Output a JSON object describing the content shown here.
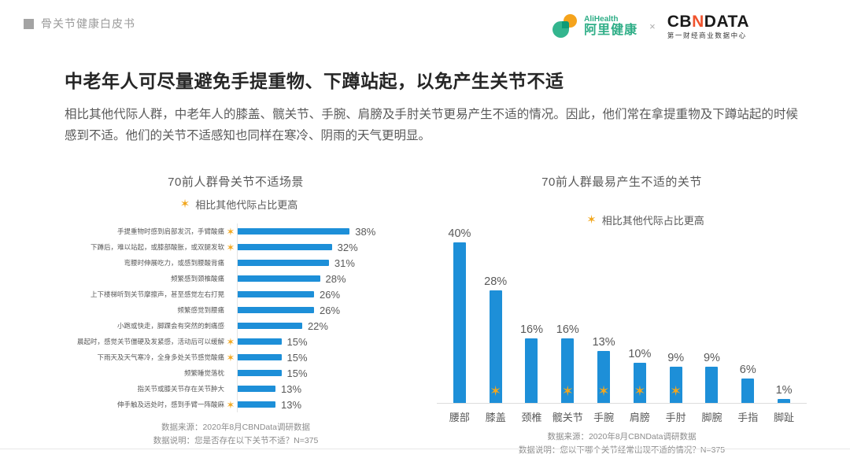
{
  "icons": {
    "star": "✶",
    "bullet": "■"
  },
  "colors": {
    "bar_blue": "#1D8FD8",
    "star_orange": "#F2A71E",
    "ali_green": "#2FAE87",
    "cbn_accent": "#F0532D"
  },
  "page": {
    "header": {
      "breadcrumb": "骨关节健康白皮书"
    },
    "logos": {
      "alihealth_en": "AliHealth",
      "alihealth_cn": "阿里健康",
      "separator": "×",
      "cbn_c": "CB",
      "cbn_n": "N",
      "cbn_data": "DATA",
      "cbn_sub": "第一财经商业数据中心"
    },
    "title": "中老年人可尽量避免手提重物、下蹲站起，以免产生关节不适",
    "body": "相比其他代际人群，中老年人的膝盖、髋关节、手腕、肩膀及手肘关节更易产生不适的情况。因此，他们常在拿提重物及下蹲站起的时候感到不适。他们的关节不适感知也同样在寒冷、阴雨的天气更明显。"
  },
  "chart_data": [
    {
      "type": "bar",
      "orientation": "horizontal",
      "title": "70前人群骨关节不适场景",
      "legend": "相比其他代际占比更高",
      "unit": "%",
      "xlim": [
        0,
        40
      ],
      "grid": false,
      "rows": [
        {
          "label": "手提重物时感到肩部发沉，手臂酸痛",
          "value": 38,
          "display": "38%",
          "star": true
        },
        {
          "label": "下蹲后，难以站起，或膝部酸胀，或双腿发软",
          "value": 32,
          "display": "32%",
          "star": true
        },
        {
          "label": "弯腰时伸展吃力，或感到腰酸背痛",
          "value": 31,
          "display": "31%",
          "star": false
        },
        {
          "label": "频繁感到颈椎酸痛",
          "value": 28,
          "display": "28%",
          "star": false
        },
        {
          "label": "上下楼梯听到关节摩擦声，甚至感觉左右打晃",
          "value": 26,
          "display": "26%",
          "star": false
        },
        {
          "label": "频繁感觉到腰痛",
          "value": 26,
          "display": "26%",
          "star": false
        },
        {
          "label": "小跑或快走，脚踝会有突然的刺痛感",
          "value": 22,
          "display": "22%",
          "star": false
        },
        {
          "label": "晨起时，感觉关节僵硬及发紧感，活动后可以缓解",
          "value": 15,
          "display": "15%",
          "star": true
        },
        {
          "label": "下雨天及天气寒冷，全身多处关节感觉酸痛",
          "value": 15,
          "display": "15%",
          "star": true
        },
        {
          "label": "频繁睡觉落枕",
          "value": 15,
          "display": "15%",
          "star": false
        },
        {
          "label": "指关节或膝关节存在关节肿大",
          "value": 13,
          "display": "13%",
          "star": false
        },
        {
          "label": "伸手触及远处时，感到手臂一阵酸麻",
          "value": 13,
          "display": "13%",
          "star": true
        }
      ],
      "source": "数据来源：2020年8月CBNData调研数据",
      "note": "数据说明：您是否存在以下关节不适？N=375"
    },
    {
      "type": "bar",
      "orientation": "vertical",
      "title": "70前人群最易产生不适的关节",
      "legend": "相比其他代际占比更高",
      "unit": "%",
      "ylim": [
        0,
        40
      ],
      "grid": false,
      "cols": [
        {
          "label": "腰部",
          "value": 40,
          "display": "40%",
          "star": false
        },
        {
          "label": "膝盖",
          "value": 28,
          "display": "28%",
          "star": true
        },
        {
          "label": "颈椎",
          "value": 16,
          "display": "16%",
          "star": false
        },
        {
          "label": "髋关节",
          "value": 16,
          "display": "16%",
          "star": true
        },
        {
          "label": "手腕",
          "value": 13,
          "display": "13%",
          "star": true
        },
        {
          "label": "肩膀",
          "value": 10,
          "display": "10%",
          "star": true
        },
        {
          "label": "手肘",
          "value": 9,
          "display": "9%",
          "star": true
        },
        {
          "label": "脚腕",
          "value": 9,
          "display": "9%",
          "star": false
        },
        {
          "label": "手指",
          "value": 6,
          "display": "6%",
          "star": false
        },
        {
          "label": "脚趾",
          "value": 1,
          "display": "1%",
          "star": false
        }
      ],
      "source": "数据来源：2020年8月CBNData调研数据",
      "note": "数据说明：您以下哪个关节经常出现不适的情况？N=375"
    }
  ]
}
